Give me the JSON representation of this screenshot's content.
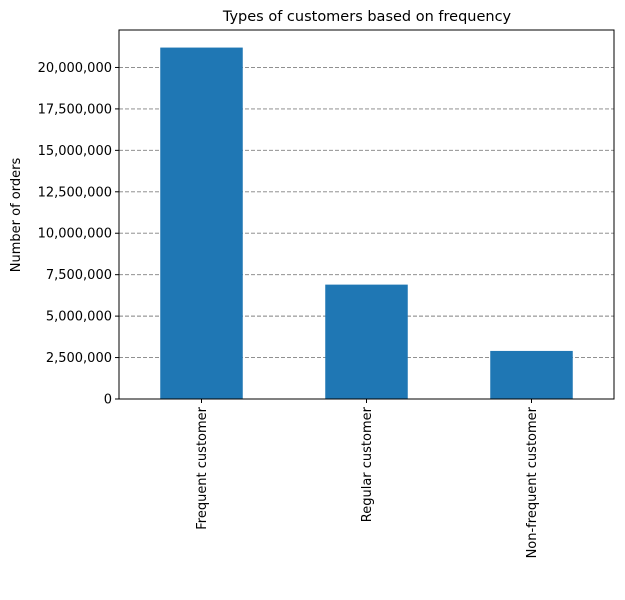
{
  "chart_data": {
    "type": "bar",
    "title": "Types of customers based on frequency",
    "xlabel": "",
    "ylabel": "Number of orders",
    "categories": [
      "Frequent customer",
      "Regular customer",
      "Non-frequent customer"
    ],
    "values": [
      21200000,
      6900000,
      2900000
    ],
    "ylim": [
      0,
      22260000
    ],
    "yticks": [
      0,
      2500000,
      5000000,
      7500000,
      10000000,
      12500000,
      15000000,
      17500000,
      20000000
    ],
    "ytick_labels": [
      "0",
      "2,500,000",
      "5,000,000",
      "7,500,000",
      "10,000,000",
      "12,500,000",
      "15,000,000",
      "17,500,000",
      "20,000,000"
    ],
    "grid": {
      "axis": "y",
      "style": "dashed",
      "color": "#808080"
    },
    "legend": "none",
    "colors": {
      "bar": "#1f77b4",
      "axis": "#000000",
      "background": "#ffffff"
    }
  }
}
